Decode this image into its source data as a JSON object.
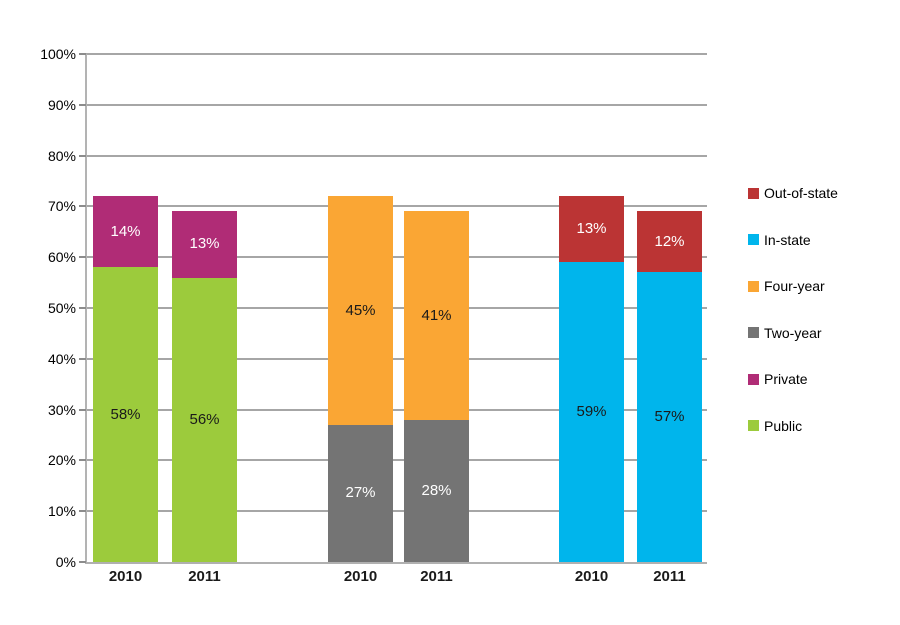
{
  "chart_data": {
    "type": "bar",
    "stacked": true,
    "title": "",
    "xlabel": "",
    "ylabel": "",
    "ylim": [
      0,
      100
    ],
    "grid": true,
    "legend_position": "right",
    "yticks": [
      {
        "value": 0,
        "label": "0%"
      },
      {
        "value": 10,
        "label": "10%"
      },
      {
        "value": 20,
        "label": "20%"
      },
      {
        "value": 30,
        "label": "30%"
      },
      {
        "value": 40,
        "label": "40%"
      },
      {
        "value": 50,
        "label": "50%"
      },
      {
        "value": 60,
        "label": "60%"
      },
      {
        "value": 70,
        "label": "70%"
      },
      {
        "value": 80,
        "label": "80%"
      },
      {
        "value": 90,
        "label": "90%"
      },
      {
        "value": 100,
        "label": "100%"
      }
    ],
    "groups": [
      {
        "categories": [
          "2010",
          "2011"
        ],
        "series": [
          {
            "name": "Public",
            "color": "#9CCB3C",
            "label_color": "#1a1a1a",
            "values": [
              58,
              56
            ],
            "labels": [
              "58%",
              "56%"
            ]
          },
          {
            "name": "Private",
            "color": "#B02C76",
            "label_color": "#ffffff",
            "values": [
              14,
              13
            ],
            "labels": [
              "14%",
              "13%"
            ]
          }
        ]
      },
      {
        "categories": [
          "2010",
          "2011"
        ],
        "series": [
          {
            "name": "Two-year",
            "color": "#747474",
            "label_color": "#ffffff",
            "values": [
              27,
              28
            ],
            "labels": [
              "27%",
              "28%"
            ]
          },
          {
            "name": "Four-year",
            "color": "#FAA634",
            "label_color": "#1a1a1a",
            "values": [
              45,
              41
            ],
            "labels": [
              "45%",
              "41%"
            ]
          }
        ]
      },
      {
        "categories": [
          "2010",
          "2011"
        ],
        "series": [
          {
            "name": "In-state",
            "color": "#00B5EC",
            "label_color": "#1a1a1a",
            "values": [
              59,
              57
            ],
            "labels": [
              "59%",
              "57%"
            ]
          },
          {
            "name": "Out-of-state",
            "color": "#BB3434",
            "label_color": "#ffffff",
            "values": [
              13,
              12
            ],
            "labels": [
              "13%",
              "12%"
            ]
          }
        ]
      }
    ],
    "legend": [
      {
        "label": "Out-of-state",
        "color": "#BB3434"
      },
      {
        "label": "In-state",
        "color": "#00B5EC"
      },
      {
        "label": "Four-year",
        "color": "#FAA634"
      },
      {
        "label": "Two-year",
        "color": "#747474"
      },
      {
        "label": "Private",
        "color": "#B02C76"
      },
      {
        "label": "Public",
        "color": "#9CCB3C"
      }
    ]
  }
}
